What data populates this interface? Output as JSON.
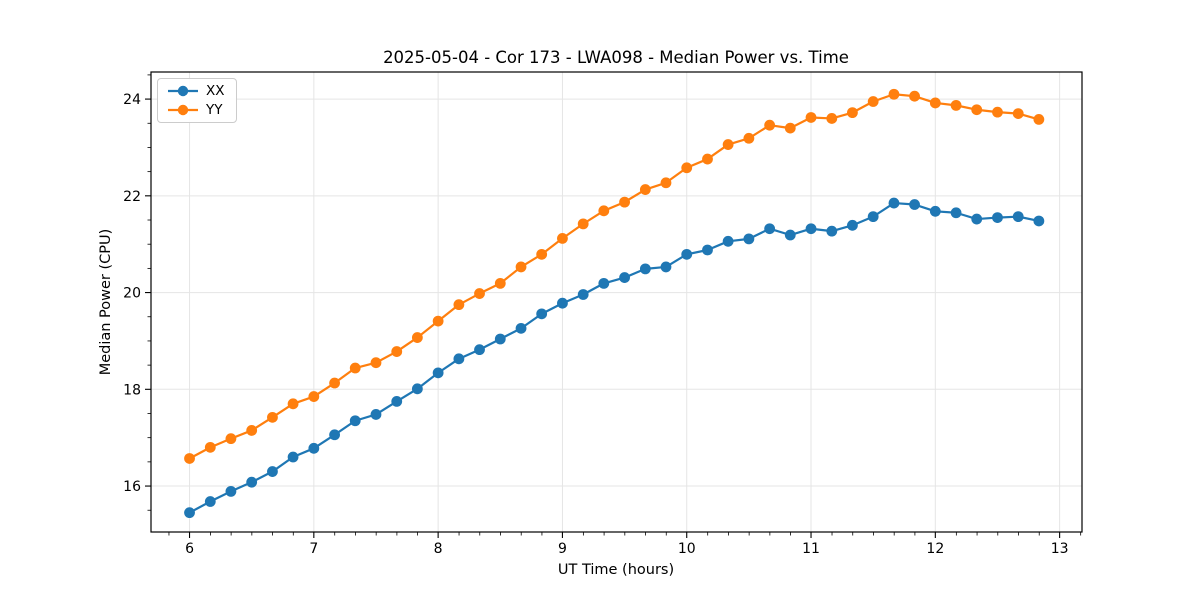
{
  "chart": {
    "title": "2025-05-04 - Cor 173 - LWA098 - Median Power vs. Time",
    "xlabel": "UT Time (hours)",
    "ylabel": "Median Power (CPU)"
  },
  "chart_data": {
    "type": "line",
    "title": "2025-05-04 - Cor 173 - LWA098 - Median Power vs. Time",
    "xlabel": "UT Time (hours)",
    "ylabel": "Median Power (CPU)",
    "grid": true,
    "legend_position": "upper left",
    "marker": "o",
    "xlim": [
      5.69,
      13.18
    ],
    "ylim": [
      15.05,
      24.56
    ],
    "xticks": [
      6,
      7,
      8,
      9,
      10,
      11,
      12,
      13
    ],
    "yticks": [
      16,
      18,
      20,
      22,
      24
    ],
    "x_minor_step": 0.1667,
    "y_minor_step": 0.5,
    "x": [
      6.0,
      6.167,
      6.333,
      6.5,
      6.667,
      6.833,
      7.0,
      7.167,
      7.333,
      7.5,
      7.667,
      7.833,
      8.0,
      8.167,
      8.333,
      8.5,
      8.667,
      8.833,
      9.0,
      9.167,
      9.333,
      9.5,
      9.667,
      9.833,
      10.0,
      10.167,
      10.333,
      10.5,
      10.667,
      10.833,
      11.0,
      11.167,
      11.333,
      11.5,
      11.667,
      11.833,
      12.0,
      12.167,
      12.333,
      12.5,
      12.667,
      12.833
    ],
    "series": [
      {
        "name": "XX",
        "color": "#1f77b4",
        "values": [
          15.45,
          15.68,
          15.89,
          16.08,
          16.3,
          16.6,
          16.78,
          17.06,
          17.35,
          17.48,
          17.75,
          18.01,
          18.34,
          18.63,
          18.82,
          19.04,
          19.26,
          19.56,
          19.78,
          19.96,
          20.19,
          20.31,
          20.49,
          20.53,
          20.79,
          20.88,
          21.06,
          21.11,
          21.32,
          21.19,
          21.32,
          21.27,
          21.39,
          21.57,
          21.85,
          21.82,
          21.68,
          21.65,
          21.52,
          21.55,
          21.57,
          21.48
        ]
      },
      {
        "name": "YY",
        "color": "#ff7f0e",
        "values": [
          16.57,
          16.8,
          16.98,
          17.15,
          17.42,
          17.7,
          17.85,
          18.13,
          18.44,
          18.55,
          18.78,
          19.07,
          19.41,
          19.75,
          19.98,
          20.19,
          20.53,
          20.79,
          21.12,
          21.42,
          21.69,
          21.87,
          22.13,
          22.27,
          22.58,
          22.76,
          23.06,
          23.19,
          23.46,
          23.4,
          23.62,
          23.6,
          23.72,
          23.95,
          24.1,
          24.06,
          23.92,
          23.87,
          23.78,
          23.73,
          23.7,
          23.58
        ]
      }
    ]
  }
}
